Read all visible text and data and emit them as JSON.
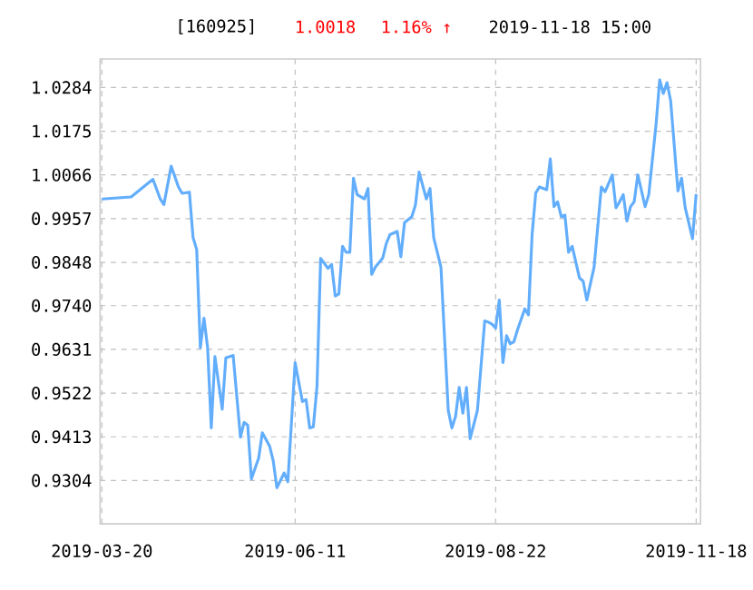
{
  "chart_data": {
    "type": "line",
    "title": "[160925]",
    "annotations": [
      "1.0018",
      "1.16% ↑",
      "2019-11-18 15:00"
    ],
    "categories": [
      "2019-03-20",
      null,
      null,
      null,
      null,
      null,
      null,
      null,
      null,
      null,
      null,
      null,
      null,
      null,
      null,
      null,
      null,
      null,
      null,
      null,
      null,
      null,
      null,
      null,
      null,
      null,
      null,
      null,
      null,
      null,
      null,
      null,
      null,
      null,
      null,
      null,
      null,
      null,
      null,
      null,
      null,
      null,
      null,
      null,
      null,
      null,
      null,
      null,
      null,
      null,
      null,
      null,
      null,
      "2019-06-11",
      null,
      null,
      null,
      null,
      null,
      null,
      null,
      null,
      null,
      null,
      null,
      null,
      null,
      null,
      null,
      null,
      null,
      null,
      null,
      null,
      null,
      null,
      null,
      null,
      null,
      null,
      null,
      null,
      null,
      null,
      null,
      null,
      null,
      null,
      null,
      null,
      null,
      null,
      null,
      null,
      null,
      null,
      null,
      null,
      null,
      null,
      null,
      null,
      null,
      null,
      null,
      null,
      null,
      null,
      "2019-08-22",
      null,
      null,
      null,
      null,
      null,
      null,
      null,
      null,
      null,
      null,
      null,
      null,
      null,
      null,
      null,
      null,
      null,
      null,
      null,
      null,
      null,
      null,
      null,
      null,
      null,
      null,
      null,
      null,
      null,
      null,
      null,
      null,
      null,
      null,
      null,
      null,
      null,
      null,
      null,
      null,
      null,
      null,
      null,
      null,
      null,
      null,
      null,
      null,
      null,
      null,
      null,
      null,
      null,
      null,
      "2019-11-18"
    ],
    "series": [
      {
        "color": "#62aefc",
        "values": [
          1.0006,
          null,
          null,
          null,
          null,
          null,
          null,
          null,
          1.0011,
          null,
          null,
          null,
          null,
          null,
          1.0055,
          null,
          1.0006,
          0.9992,
          null,
          1.0088,
          null,
          1.0036,
          1.002,
          null,
          1.0023,
          0.991,
          0.988,
          0.9635,
          0.9709,
          0.9635,
          0.9435,
          0.9613,
          null,
          0.9482,
          0.961,
          null,
          0.9616,
          null,
          0.9412,
          0.9449,
          0.9442,
          0.9308,
          null,
          0.936,
          0.9423,
          null,
          0.939,
          0.9353,
          0.9286,
          null,
          0.9323,
          0.9301,
          null,
          0.9598,
          null,
          0.9501,
          0.9506,
          0.9435,
          0.9438,
          0.9539,
          0.9858,
          null,
          0.9833,
          0.9843,
          0.9764,
          0.9769,
          0.9888,
          0.9873,
          0.9873,
          1.0058,
          1.0017,
          null,
          1.0006,
          1.0032,
          0.9818,
          0.9836,
          null,
          0.9858,
          0.9895,
          0.9917,
          null,
          0.9925,
          0.9862,
          0.9947,
          null,
          0.9962,
          0.9991,
          1.0073,
          null,
          1.0006,
          1.0032,
          0.991,
          null,
          0.9836,
          null,
          0.9479,
          0.9435,
          0.9464,
          0.9536,
          0.9472,
          0.9536,
          0.9408,
          null,
          0.9479,
          null,
          0.9702,
          0.9699,
          0.9694,
          0.9684,
          0.9754,
          0.9598,
          0.9665,
          0.9645,
          0.965,
          0.968,
          null,
          0.9732,
          0.9717,
          0.9917,
          1.0021,
          1.0036,
          null,
          1.0029,
          1.0106,
          0.9987,
          0.9999,
          0.9962,
          0.9966,
          0.9873,
          0.9888,
          null,
          0.9809,
          0.9801,
          0.9754,
          null,
          0.9836,
          null,
          1.0036,
          1.0024,
          null,
          1.0066,
          0.9984,
          0.9999,
          1.0017,
          0.9951,
          0.9987,
          0.9999,
          1.0066,
          null,
          0.9987,
          1.0017,
          null,
          1.0192,
          1.0303,
          1.0269,
          1.0296,
          1.0251,
          null,
          1.0026,
          1.0058,
          0.9984,
          null,
          0.9907,
          1.0018
        ]
      }
    ],
    "ylim": [
      0.9196,
      1.0355
    ],
    "yticks": [
      0.9304,
      0.9413,
      0.9522,
      0.9631,
      {
        "value": 0.974,
        "label": "0.9740"
      },
      0.9848,
      0.9957,
      1.0066,
      1.0175,
      1.0284
    ],
    "grid": true,
    "marker": "none",
    "line_style": "solid"
  }
}
